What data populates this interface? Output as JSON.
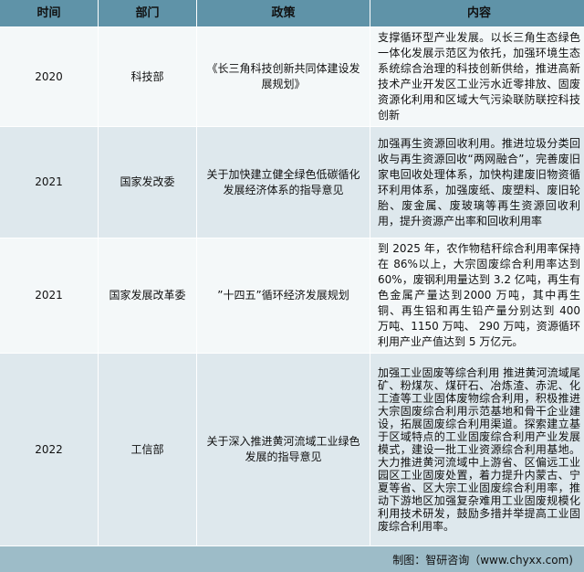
{
  "header": [
    "时间",
    "部门",
    "政策",
    "内容"
  ],
  "rows": [
    {
      "year": "2020",
      "dept": "科技部",
      "policy": "《长三角科技创新共同体建设发展规划》",
      "content": "支撑循环型产业发展。以长三角生态绿色一体化发展示范区为依托，加强环境生态系统综合治理的科技创新供给，推进高新技术产业开发区工业污水近零排放、固废资源化利用和区域大气污染联防联控科技创新"
    },
    {
      "year": "2021",
      "dept": "国家发改委",
      "policy": "关于加快建立健全绿色低碳循化发展经济体系的指导意见",
      "content": "加强再生资源回收利用。推进垃圾分类回收与再生资源回收“两网融合”，完善废旧家电回收处理体系，加快构建废旧物资循环利用体系，加强废纸、废塑料、废旧轮胎、废金属、废玻璃等再生资源回收利用，提升资源产出率和回收利用率"
    },
    {
      "year": "2021",
      "dept": "国家发展改革委",
      "policy": "”十四五”循环经济发展规划",
      "content": "到 2025 年，农作物秸秆综合利用率保持在 86%以上，大宗固废综合利用率达到 60%，废钢利用量达到 3.2 亿吨，再生有色金属产量达到2000 万吨，其中再生铜、再生铝和再生铅产量分别达到 400 万吨、1150 万吨、 290 万吨，资源循环利用产业产值达到 5 万亿元。"
    },
    {
      "year": "2022",
      "dept": "工信部",
      "policy": "关于深入推进黄河流域工业绿色发展的指导意见",
      "content": "加强工业固废等综合利用 推进黄河流域尾矿、粉煤灰、煤矸石、冶炼渣、赤泥、化工渣等工业固体废物综合利用，积极推进大宗固废综合利用示范基地和骨干企业建设，拓展固废综合利用渠道。探索建立基于区域特点的工业固废综合利用产业发展模式，建设一批工业资源综合利用基地。大力推进黄河流域中上游省、区偏远工业园区工业固废处置，着力提升内蒙古、宁夏等省、区大宗工业固废综合利用率，推动下游地区加强复杂难用工业固废规模化利用技术研发，鼓励多措并举提高工业固废综合利用率。"
    }
  ],
  "footer": "制图：智研咨询（www.chyxx.com)",
  "colors": {
    "header": "#5f93a8",
    "row_light": "#f4f8f9",
    "row_dark": "#dee8ed",
    "footer": "#9dbcc8"
  }
}
